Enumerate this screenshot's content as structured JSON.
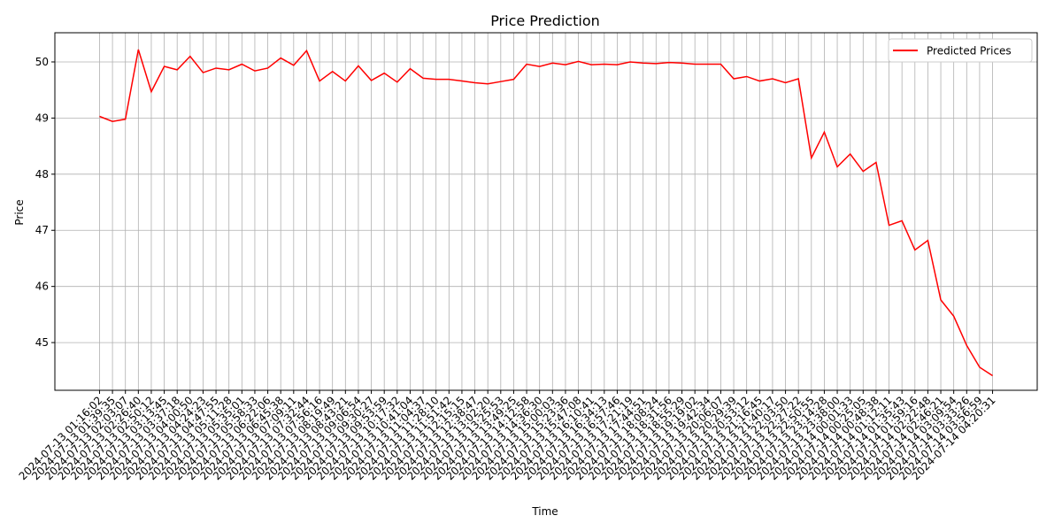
{
  "chart_data": {
    "type": "line",
    "title": "Price Prediction",
    "x_label": "Time",
    "y_label": "Price",
    "categories": [
      "2024-07-13 01:16:02",
      "2024-07-13 01:39:35",
      "2024-07-13 02:03:07",
      "2024-07-13 02:26:40",
      "2024-07-13 02:50:12",
      "2024-07-13 03:13:45",
      "2024-07-13 03:37:18",
      "2024-07-13 04:00:50",
      "2024-07-13 04:24:23",
      "2024-07-13 04:47:55",
      "2024-07-13 05:11:28",
      "2024-07-13 05:35:01",
      "2024-07-13 05:58:33",
      "2024-07-13 06:22:06",
      "2024-07-13 06:45:38",
      "2024-07-13 07:09:11",
      "2024-07-13 07:32:44",
      "2024-07-13 07:56:16",
      "2024-07-13 08:19:49",
      "2024-07-13 08:43:21",
      "2024-07-13 09:06:54",
      "2024-07-13 09:30:27",
      "2024-07-13 09:53:59",
      "2024-07-13 10:17:32",
      "2024-07-13 10:41:04",
      "2024-07-13 11:04:37",
      "2024-07-13 11:28:10",
      "2024-07-13 11:51:42",
      "2024-07-13 12:15:15",
      "2024-07-13 12:38:47",
      "2024-07-13 13:02:20",
      "2024-07-13 13:25:53",
      "2024-07-13 13:49:25",
      "2024-07-13 14:12:58",
      "2024-07-13 14:36:30",
      "2024-07-13 15:00:03",
      "2024-07-13 15:23:36",
      "2024-07-13 15:47:08",
      "2024-07-13 16:10:41",
      "2024-07-13 16:34:13",
      "2024-07-13 16:57:46",
      "2024-07-13 17:21:19",
      "2024-07-13 17:44:51",
      "2024-07-13 18:08:24",
      "2024-07-13 18:31:56",
      "2024-07-13 18:55:29",
      "2024-07-13 19:19:02",
      "2024-07-13 19:42:34",
      "2024-07-13 20:06:07",
      "2024-07-13 20:29:39",
      "2024-07-13 20:53:12",
      "2024-07-13 21:16:45",
      "2024-07-13 21:40:17",
      "2024-07-13 22:03:50",
      "2024-07-13 22:27:22",
      "2024-07-13 22:50:55",
      "2024-07-13 23:14:28",
      "2024-07-13 23:38:00",
      "2024-07-14 00:01:33",
      "2024-07-14 00:25:05",
      "2024-07-14 00:48:38",
      "2024-07-14 01:12:11",
      "2024-07-14 01:35:43",
      "2024-07-14 01:59:16",
      "2024-07-14 02:22:48",
      "2024-07-14 02:46:21",
      "2024-07-14 03:09:54",
      "2024-07-14 03:33:26",
      "2024-07-14 03:56:59",
      "2024-07-14 04:20:31"
    ],
    "series": [
      {
        "name": "Predicted Prices",
        "color": "#ff0000",
        "values": [
          49.03,
          48.94,
          48.98,
          50.22,
          49.47,
          49.92,
          49.86,
          50.1,
          49.81,
          49.89,
          49.86,
          49.96,
          49.84,
          49.89,
          50.07,
          49.94,
          50.2,
          49.66,
          49.83,
          49.66,
          49.93,
          49.67,
          49.8,
          49.64,
          49.88,
          49.71,
          49.69,
          49.69,
          49.66,
          49.63,
          49.61,
          49.65,
          49.69,
          49.96,
          49.92,
          49.98,
          49.95,
          50.01,
          49.95,
          49.96,
          49.95,
          50.0,
          49.98,
          49.97,
          49.99,
          49.98,
          49.96,
          49.96,
          49.96,
          49.7,
          49.74,
          49.66,
          49.7,
          49.63,
          49.7,
          48.29,
          48.75,
          48.13,
          48.36,
          48.05,
          48.21,
          47.09,
          47.17,
          46.65,
          46.82,
          45.76,
          45.47,
          44.95,
          44.56,
          44.41
        ]
      }
    ],
    "ylim": [
      44.15,
      50.52
    ],
    "yticks": [
      45,
      46,
      47,
      48,
      49,
      50
    ],
    "grid": true,
    "legend": "upper right"
  }
}
